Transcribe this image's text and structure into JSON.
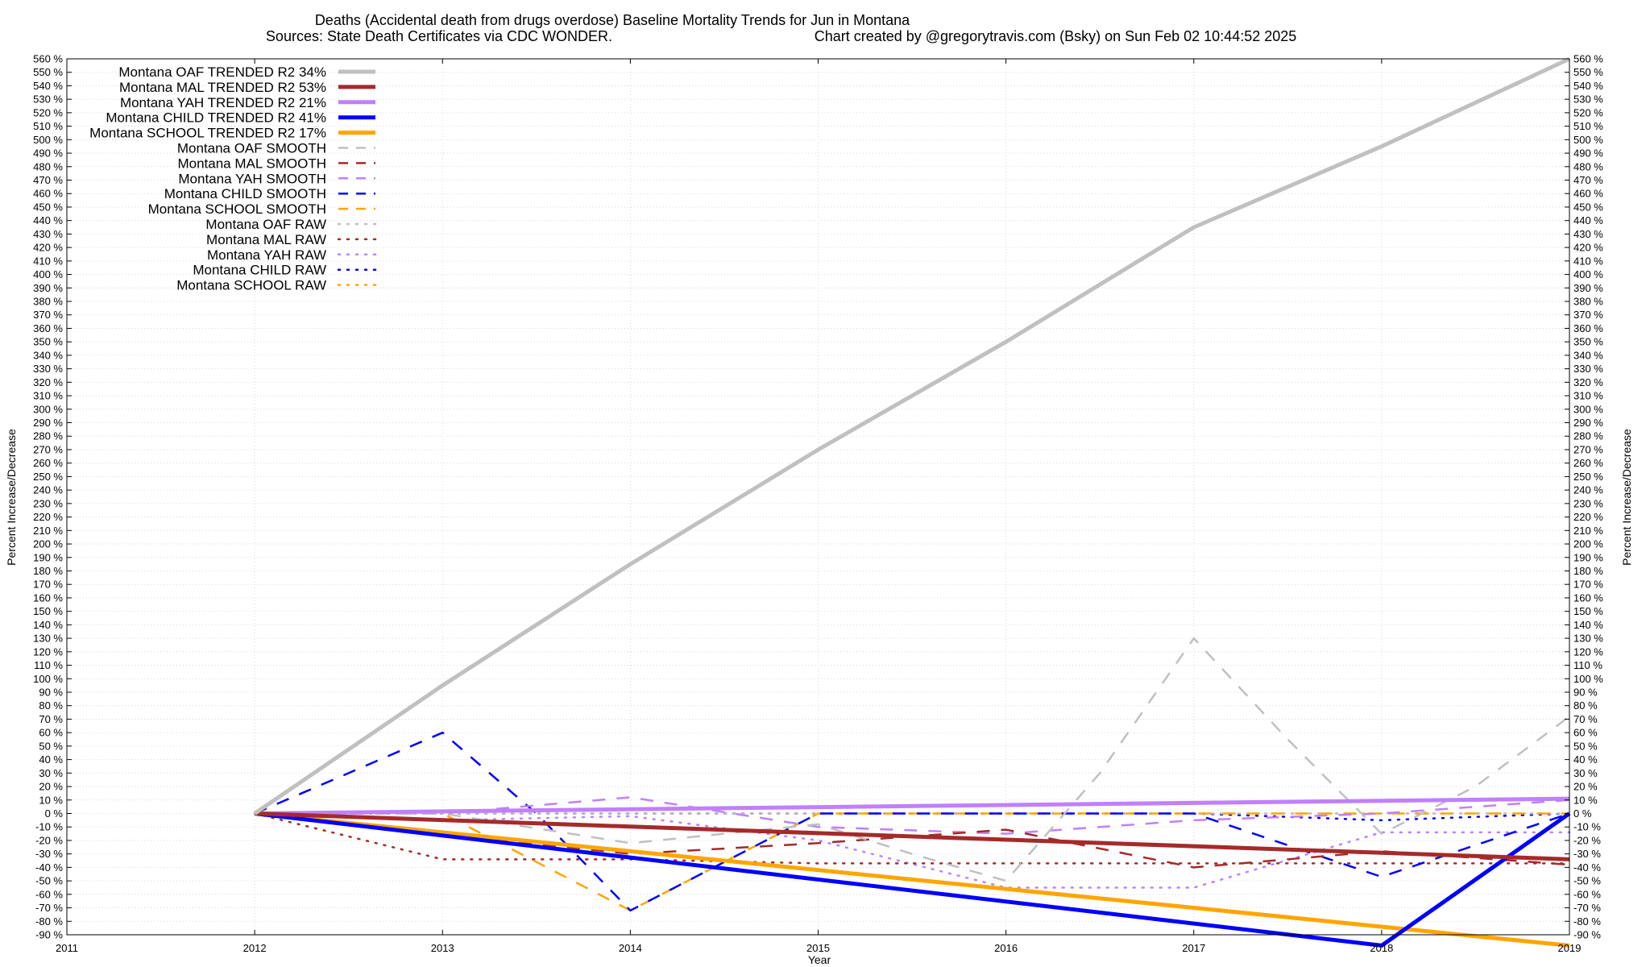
{
  "chart_data": {
    "type": "line",
    "title": "Deaths (Accidental death from drugs overdose)  Baseline Mortality Trends for Jun in Montana",
    "subtitle_left": "Sources: State Death Certificates via CDC WONDER.",
    "subtitle_right": "Chart created by @gregorytravis.com (Bsky) on Sun Feb 02 10:44:52 2025",
    "xlabel": "Year",
    "ylabel": "Percent Increase/Decrease",
    "xlim": [
      2011,
      2019
    ],
    "ylim": [
      -90,
      560
    ],
    "x_ticks": [
      "2011",
      "2012",
      "2013",
      "2014",
      "2015",
      "2016",
      "2017",
      "2018",
      "2019"
    ],
    "y_tick_suffix": " %",
    "y_tick_step": 10,
    "grid": true,
    "legend_position": "top-left",
    "series": [
      {
        "name": "Montana OAF TRENDED R2  34%",
        "style": "solid",
        "color": "#c0c0c0",
        "x": [
          2012,
          2013,
          2014,
          2015,
          2016,
          2017,
          2018,
          2019
        ],
        "y": [
          0,
          95,
          185,
          270,
          350,
          435,
          495,
          560
        ]
      },
      {
        "name": "Montana MAL TRENDED R2  53%",
        "style": "solid",
        "color": "#a52a2a",
        "x": [
          2012,
          2019
        ],
        "y": [
          0,
          -34
        ]
      },
      {
        "name": "Montana YAH TRENDED R2  21%",
        "style": "solid",
        "color": "#c080ff",
        "x": [
          2012,
          2019
        ],
        "y": [
          0,
          11
        ]
      },
      {
        "name": "Montana CHILD TRENDED R2  41%",
        "style": "solid",
        "color": "#0000ff",
        "x": [
          2012,
          2018,
          2019
        ],
        "y": [
          0,
          -98,
          0
        ]
      },
      {
        "name": "Montana SCHOOL TRENDED R2  17%",
        "style": "solid",
        "color": "#ffa500",
        "x": [
          2012,
          2019
        ],
        "y": [
          0,
          -98
        ]
      },
      {
        "name": "Montana OAF SMOOTH",
        "style": "dashed",
        "color": "#c0c0c0",
        "x": [
          2012,
          2013,
          2014,
          2015,
          2015.5,
          2016,
          2016.5,
          2017,
          2017.5,
          2018,
          2018.5,
          2019
        ],
        "y": [
          0,
          0,
          -22,
          -8,
          -30,
          -50,
          30,
          130,
          55,
          -15,
          20,
          72
        ]
      },
      {
        "name": "Montana MAL SMOOTH",
        "style": "dashed",
        "color": "#a52a2a",
        "x": [
          2012,
          2013,
          2014,
          2015,
          2016,
          2017,
          2018,
          2019
        ],
        "y": [
          0,
          -15,
          -30,
          -22,
          -12,
          -40,
          -28,
          -38
        ]
      },
      {
        "name": "Montana YAH SMOOTH",
        "style": "dashed",
        "color": "#c080ff",
        "x": [
          2012,
          2013,
          2014,
          2015,
          2016,
          2017,
          2018,
          2019
        ],
        "y": [
          0,
          0,
          12,
          -10,
          -15,
          -5,
          0,
          10
        ]
      },
      {
        "name": "Montana CHILD SMOOTH",
        "style": "dashed",
        "color": "#0000ff",
        "x": [
          2012,
          2013,
          2013.5,
          2014,
          2015,
          2016,
          2017,
          2018,
          2019
        ],
        "y": [
          0,
          60,
          0,
          -72,
          0,
          0,
          0,
          -47,
          0
        ]
      },
      {
        "name": "Montana SCHOOL SMOOTH",
        "style": "dashed",
        "color": "#ffa500",
        "x": [
          2012,
          2013,
          2014,
          2015,
          2016,
          2017,
          2018,
          2019
        ],
        "y": [
          0,
          0,
          -72,
          0,
          0,
          0,
          0,
          0
        ]
      },
      {
        "name": "Montana OAF RAW",
        "style": "dotted",
        "color": "#c0c0c0",
        "x": [
          2012,
          2013,
          2014,
          2015,
          2016,
          2017,
          2018,
          2019
        ],
        "y": [
          0,
          0,
          0,
          0,
          0,
          0,
          0,
          0
        ]
      },
      {
        "name": "Montana MAL RAW",
        "style": "dotted",
        "color": "#a52a2a",
        "x": [
          2012,
          2013,
          2014,
          2015,
          2016,
          2017,
          2018,
          2019
        ],
        "y": [
          0,
          -34,
          -34,
          -37,
          -37,
          -37,
          -37,
          -37
        ]
      },
      {
        "name": "Montana YAH RAW",
        "style": "dotted",
        "color": "#c080ff",
        "x": [
          2012,
          2013,
          2014,
          2015,
          2016,
          2017,
          2018,
          2019
        ],
        "y": [
          0,
          -5,
          -2,
          -20,
          -55,
          -55,
          -14,
          -14
        ]
      },
      {
        "name": "Montana CHILD RAW",
        "style": "dotted",
        "color": "#0000ff",
        "x": [
          2012,
          2013,
          2014,
          2015,
          2016,
          2017,
          2018,
          2019
        ],
        "y": [
          0,
          0,
          0,
          0,
          0,
          0,
          -5,
          0
        ]
      },
      {
        "name": "Montana SCHOOL RAW",
        "style": "dotted",
        "color": "#ffa500",
        "x": [
          2012,
          2013,
          2014,
          2015,
          2016,
          2017,
          2018,
          2019
        ],
        "y": [
          0,
          0,
          0,
          0,
          0,
          0,
          0,
          0
        ]
      }
    ]
  }
}
